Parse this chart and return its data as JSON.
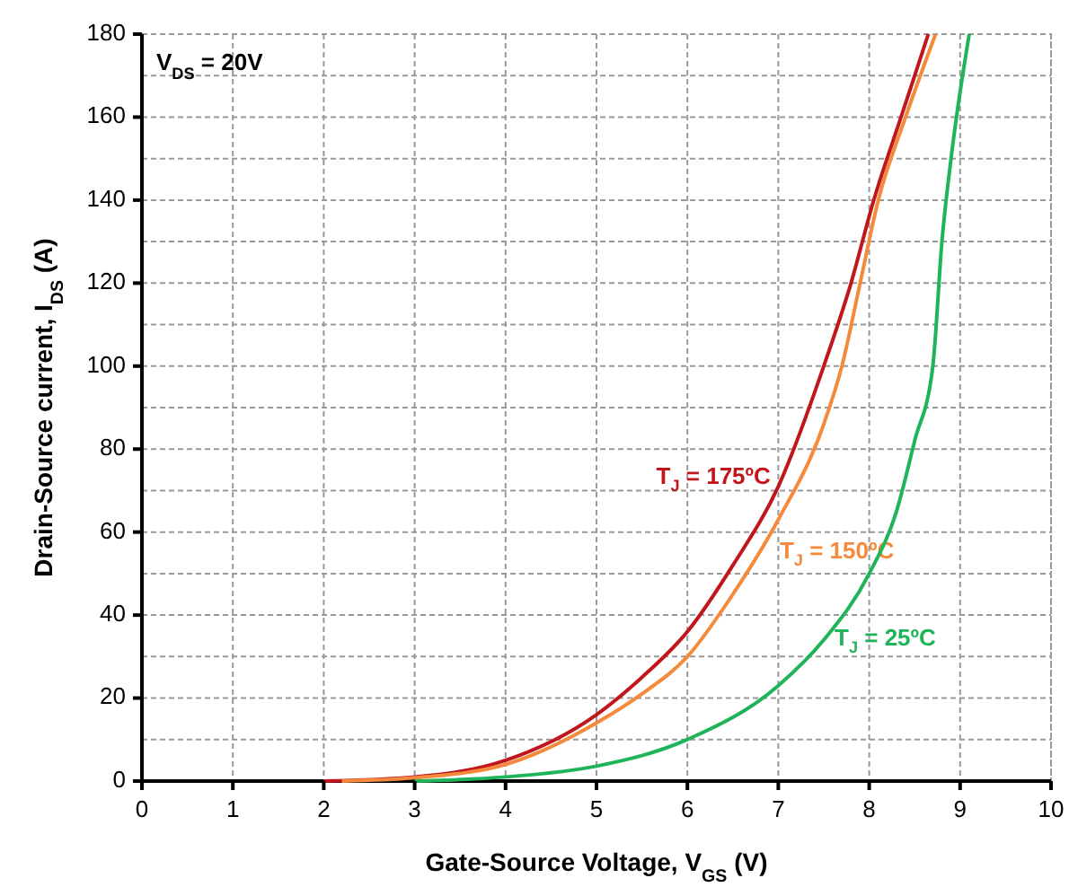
{
  "chart_data": {
    "type": "line",
    "xlabel": "Gate-Source Voltage, V$_{GS}$ (V)",
    "ylabel": "Drain-Source current, I$_{DS}$  (A)",
    "annotations": [
      "V$_{DS}$ = 20V"
    ],
    "xlim": [
      0,
      10
    ],
    "xticks": [
      0,
      1,
      2,
      3,
      4,
      5,
      6,
      7,
      8,
      9,
      10
    ],
    "ylim": [
      0,
      180
    ],
    "yticks": [
      0,
      {
        "value": 10,
        "label": null
      },
      20,
      {
        "value": 30,
        "label": null
      },
      40,
      {
        "value": 50,
        "label": null
      },
      60,
      {
        "value": 70,
        "label": null
      },
      80,
      {
        "value": 90,
        "label": null
      },
      100,
      {
        "value": 110,
        "label": null
      },
      120,
      {
        "value": 130,
        "label": null
      },
      140,
      {
        "value": 150,
        "label": null
      },
      160,
      {
        "value": 170,
        "label": null
      },
      180
    ],
    "grid": true,
    "line_style": "solid",
    "marker": "none",
    "series": [
      {
        "name": "T$_{J}$ = 175ºC",
        "color": "#c0161c",
        "x": [
          2,
          3,
          4,
          5,
          5.5,
          6,
          6.5,
          7,
          7.5,
          7.8,
          8.05,
          8.35,
          8.65
        ],
        "values": [
          0,
          1,
          5,
          16,
          25,
          36,
          52,
          71,
          100,
          120,
          140,
          160,
          180
        ]
      },
      {
        "name": "T$_{J}$ = 150ºC",
        "color": "#f58a3c",
        "x": [
          2.2,
          3,
          4,
          5,
          5.5,
          6,
          6.5,
          7,
          7.5,
          7.7,
          7.9,
          8.1,
          8.4,
          8.73
        ],
        "values": [
          0,
          0.8,
          4,
          14,
          21,
          30,
          45,
          63,
          86,
          100,
          120,
          140,
          160,
          180
        ]
      },
      {
        "name": "T$_{J}$ = 25ºC",
        "color": "#1fb45a",
        "x": [
          3,
          4,
          5,
          6,
          7,
          7.5,
          8,
          8.3,
          8.5,
          8.7,
          8.8,
          8.9,
          9.1
        ],
        "values": [
          0,
          1,
          3.6,
          10,
          23,
          34,
          50,
          65,
          82,
          100,
          130,
          150,
          180
        ]
      }
    ]
  }
}
